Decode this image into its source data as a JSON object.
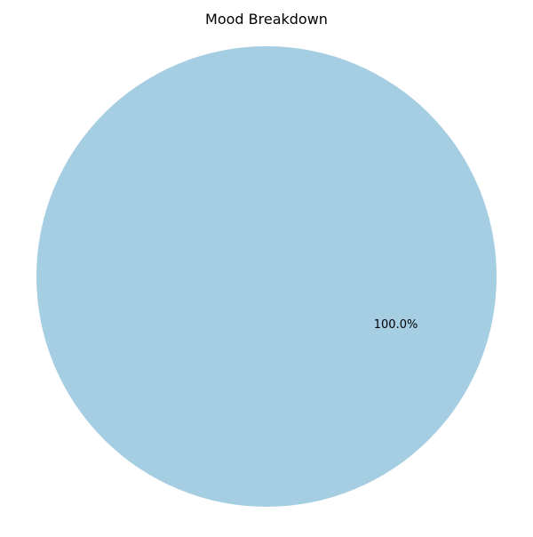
{
  "chart_data": {
    "type": "pie",
    "title": "Mood Breakdown",
    "slices": [
      {
        "name": "",
        "value": 100.0,
        "label": "100.0%",
        "color": "#a6cee3"
      }
    ],
    "legend": "none"
  }
}
